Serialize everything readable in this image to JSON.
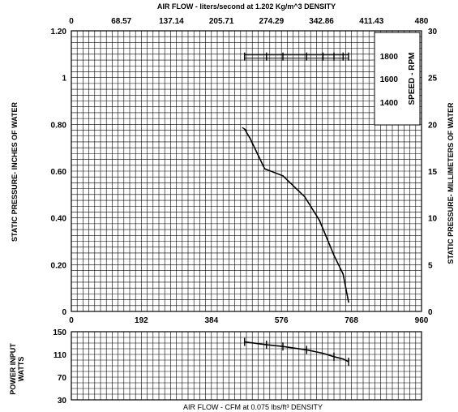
{
  "chart_data": [
    {
      "type": "line",
      "name": "static-pressure",
      "x_label_bottom": "",
      "x_label_top": "AIR FLOW - liters/second at  1.202 Kg/m^3  DENSITY",
      "y_label_left": "STATIC PRESSURE- INCHES OF WATER",
      "y_label_right": "STATIC PRESSURE- MILLIMETERS OF WATER",
      "xlim": [
        0,
        960
      ],
      "ylim": [
        0,
        1.2
      ],
      "x_ticks_bottom": [
        "0",
        "192",
        "384",
        "576",
        "768",
        "960"
      ],
      "x_ticks_top": [
        "0",
        "68.57",
        "137.14",
        "205.71",
        "274.29",
        "342.86",
        "411.43",
        "480"
      ],
      "y_ticks_left": [
        "0",
        "0.20",
        "0.40",
        "0.60",
        "0.80",
        "1",
        "1.20"
      ],
      "y_ticks_right": [
        "0",
        "5",
        "10",
        "15",
        "20",
        "25",
        "30"
      ],
      "grid": true,
      "series": [
        {
          "values_xy": [
            [
              475,
              0.78
            ],
            [
              490,
              0.74
            ],
            [
              530,
              0.61
            ],
            [
              580,
              0.58
            ],
            [
              640,
              0.49
            ],
            [
              680,
              0.39
            ],
            [
              720,
              0.24
            ],
            [
              745,
              0.16
            ],
            [
              760,
              0.04
            ]
          ]
        }
      ],
      "speed_range_bar": {
        "x_start": 475,
        "x_end": 760,
        "y": 1.09,
        "marks": [
          475,
          535,
          580,
          645,
          690,
          720,
          745,
          760
        ]
      },
      "legend": {
        "title": "SPEED - RPM",
        "ticks": [
          "1800",
          "1600",
          "1400"
        ],
        "placement": "top-right"
      }
    },
    {
      "type": "line",
      "name": "power-input",
      "xlabel": "AIR FLOW - CFM at 0.075 lbs/ft³ DENSITY",
      "ylabel": "POWER INPUT WATTS",
      "xlim": [
        0,
        960
      ],
      "ylim": [
        30,
        150
      ],
      "y_ticks": [
        "150",
        "110",
        "70",
        "30"
      ],
      "grid": true,
      "series": [
        {
          "values_xy": [
            [
              475,
              132
            ],
            [
              535,
              127
            ],
            [
              580,
              124
            ],
            [
              645,
              118
            ],
            [
              690,
              112
            ],
            [
              720,
              106
            ],
            [
              745,
              102
            ],
            [
              760,
              97
            ]
          ],
          "marks": [
            475,
            535,
            580,
            645,
            720,
            760
          ]
        }
      ]
    }
  ]
}
